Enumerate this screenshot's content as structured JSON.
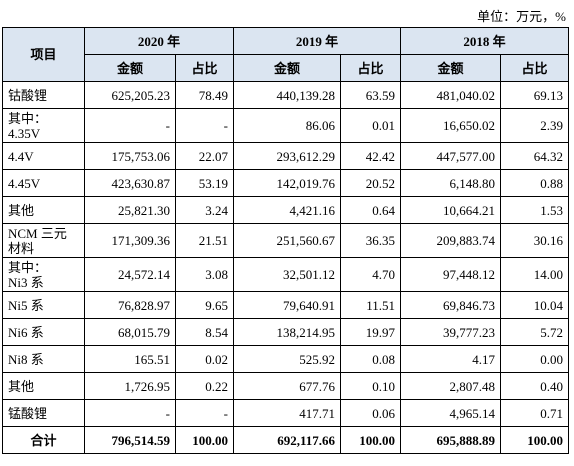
{
  "unit": "单位：万元，%",
  "table": {
    "header": {
      "item": "项目",
      "years": [
        "2020 年",
        "2019 年",
        "2018 年"
      ],
      "sub": [
        "金额",
        "占比",
        "金额",
        "占比",
        "金额",
        "占比"
      ]
    },
    "rows": [
      [
        "钴酸锂",
        "625,205.23",
        "78.49",
        "440,139.28",
        "63.59",
        "481,040.02",
        "69.13"
      ],
      [
        "其中：\n4.35V",
        "-",
        "-",
        "86.06",
        "0.01",
        "16,650.02",
        "2.39"
      ],
      [
        "4.4V",
        "175,753.06",
        "22.07",
        "293,612.29",
        "42.42",
        "447,577.00",
        "64.32"
      ],
      [
        "4.45V",
        "423,630.87",
        "53.19",
        "142,019.76",
        "20.52",
        "6,148.80",
        "0.88"
      ],
      [
        "其他",
        "25,821.30",
        "3.24",
        "4,421.16",
        "0.64",
        "10,664.21",
        "1.53"
      ],
      [
        "NCM 三元\n材料",
        "171,309.36",
        "21.51",
        "251,560.67",
        "36.35",
        "209,883.74",
        "30.16"
      ],
      [
        "其中：\nNi3 系",
        "24,572.14",
        "3.08",
        "32,501.12",
        "4.70",
        "97,448.12",
        "14.00"
      ],
      [
        "Ni5 系",
        "76,828.97",
        "9.65",
        "79,640.91",
        "11.51",
        "69,846.73",
        "10.04"
      ],
      [
        "Ni6 系",
        "68,015.79",
        "8.54",
        "138,214.95",
        "19.97",
        "39,777.23",
        "5.72"
      ],
      [
        "Ni8 系",
        "165.51",
        "0.02",
        "525.92",
        "0.08",
        "4.17",
        "0.00"
      ],
      [
        "其他",
        "1,726.95",
        "0.22",
        "677.76",
        "0.10",
        "2,807.48",
        "0.40"
      ],
      [
        "锰酸锂",
        "-",
        "-",
        "417.71",
        "0.06",
        "4,965.14",
        "0.71"
      ],
      [
        "合计",
        "796,514.59",
        "100.00",
        "692,117.66",
        "100.00",
        "695,888.89",
        "100.00"
      ]
    ]
  }
}
